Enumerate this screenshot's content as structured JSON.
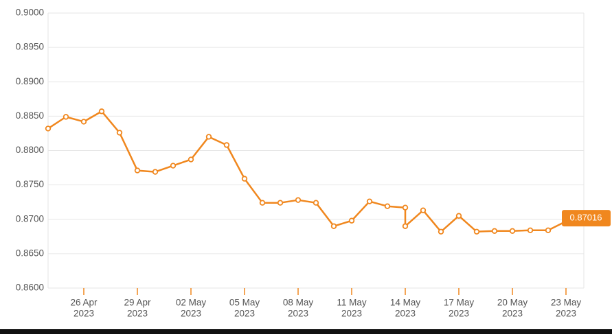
{
  "chart_data": {
    "type": "line",
    "color": "#f0871e",
    "grid": true,
    "series": [
      {
        "name": null,
        "color": "#f0871e",
        "x": [
          "2023-04-24",
          "2023-04-25",
          "2023-04-26",
          "2023-04-27",
          "2023-04-28",
          "2023-04-29",
          "2023-04-30",
          "2023-05-01",
          "2023-05-02",
          "2023-05-03",
          "2023-05-04",
          "2023-05-05",
          "2023-05-06",
          "2023-05-07",
          "2023-05-08",
          "2023-05-09",
          "2023-05-10",
          "2023-05-11",
          "2023-05-12",
          "2023-05-13",
          "2023-05-14",
          "2023-05-14",
          "2023-05-15",
          "2023-05-16",
          "2023-05-17",
          "2023-05-18",
          "2023-05-19",
          "2023-05-20",
          "2023-05-21",
          "2023-05-22",
          "2023-05-23",
          "2023-05-24",
          "2023-05-24"
        ],
        "values": [
          0.8832,
          0.8849,
          0.8842,
          0.8857,
          0.8826,
          0.8771,
          0.8769,
          0.8778,
          0.8787,
          0.882,
          0.8808,
          0.8759,
          0.8724,
          0.8724,
          0.8728,
          0.8724,
          0.869,
          0.8698,
          0.8726,
          0.8719,
          0.8717,
          0.869,
          0.8713,
          0.8682,
          0.8705,
          0.8682,
          0.8683,
          0.8683,
          0.8684,
          0.8684,
          0.8697,
          0.8701,
          0.87016
        ]
      }
    ],
    "xlim": [
      "2023-04-24",
      "2023-05-24"
    ],
    "ylim": [
      0.86,
      0.9
    ],
    "yticks": [
      {
        "value": 0.86,
        "label": "0.8600"
      },
      {
        "value": 0.865,
        "label": "0.8650"
      },
      {
        "value": 0.87,
        "label": "0.8700"
      },
      {
        "value": 0.875,
        "label": "0.8750"
      },
      {
        "value": 0.88,
        "label": "0.8800"
      },
      {
        "value": 0.885,
        "label": "0.8850"
      },
      {
        "value": 0.89,
        "label": "0.8900"
      },
      {
        "value": 0.895,
        "label": "0.8950"
      },
      {
        "value": 0.9,
        "label": "0.9000"
      }
    ],
    "xticks": [
      {
        "value": "2023-04-26",
        "label": "26 Apr",
        "year": "2023"
      },
      {
        "value": "2023-04-29",
        "label": "29 Apr",
        "year": "2023"
      },
      {
        "value": "2023-05-02",
        "label": "02 May",
        "year": "2023"
      },
      {
        "value": "2023-05-05",
        "label": "05 May",
        "year": "2023"
      },
      {
        "value": "2023-05-08",
        "label": "08 May",
        "year": "2023"
      },
      {
        "value": "2023-05-11",
        "label": "11 May",
        "year": "2023"
      },
      {
        "value": "2023-05-14",
        "label": "14 May",
        "year": "2023"
      },
      {
        "value": "2023-05-17",
        "label": "17 May",
        "year": "2023"
      },
      {
        "value": "2023-05-20",
        "label": "20 May",
        "year": "2023"
      },
      {
        "value": "2023-05-23",
        "label": "23 May",
        "year": "2023"
      }
    ]
  }
}
